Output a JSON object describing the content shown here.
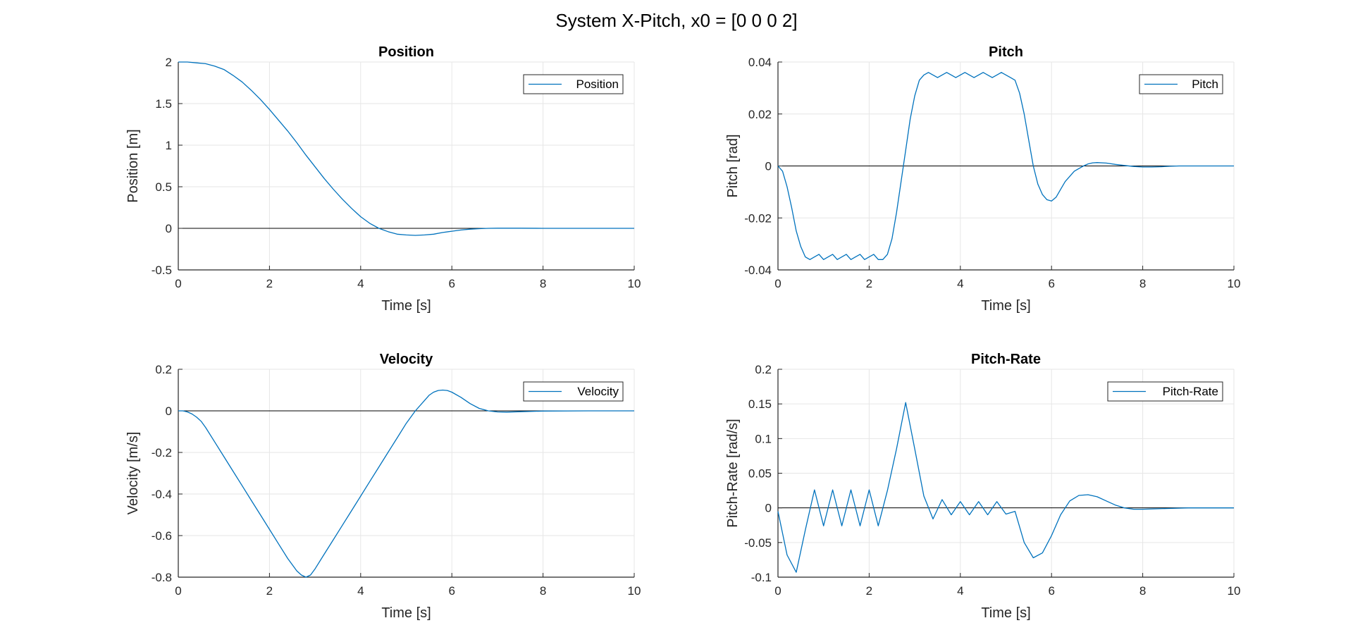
{
  "figure": {
    "suptitle": "System X-Pitch, x0 = [0 0 0 2]"
  },
  "colors": {
    "series": "#0072BD",
    "zero_line": "#000000",
    "grid": "#e6e6e6",
    "axis": "#262626"
  },
  "chart_data": [
    {
      "type": "line",
      "title": "Position",
      "xlabel": "Time [s]",
      "ylabel": "Position [m]",
      "xlim": [
        0,
        10
      ],
      "ylim": [
        -0.5,
        2
      ],
      "xticks": [
        0,
        2,
        4,
        6,
        8,
        10
      ],
      "yticks": [
        -0.5,
        0,
        0.5,
        1,
        1.5,
        2
      ],
      "ytick_labels": [
        "-0.5",
        "0",
        "0.5",
        "1",
        "1.5",
        "2"
      ],
      "grid": true,
      "legend": "top-right",
      "zero_line": true,
      "series": [
        {
          "name": "Position",
          "x": [
            0,
            0.2,
            0.4,
            0.6,
            0.8,
            1.0,
            1.2,
            1.4,
            1.6,
            1.8,
            2.0,
            2.2,
            2.4,
            2.6,
            2.8,
            3.0,
            3.2,
            3.4,
            3.6,
            3.8,
            4.0,
            4.2,
            4.4,
            4.6,
            4.8,
            5.0,
            5.2,
            5.4,
            5.6,
            5.8,
            6.0,
            6.2,
            6.4,
            6.6,
            6.8,
            7.0,
            7.5,
            8.0,
            9.0,
            10.0
          ],
          "y": [
            2.0,
            2.0,
            1.99,
            1.98,
            1.95,
            1.91,
            1.84,
            1.76,
            1.66,
            1.55,
            1.43,
            1.3,
            1.17,
            1.03,
            0.88,
            0.74,
            0.6,
            0.47,
            0.35,
            0.24,
            0.14,
            0.06,
            0.0,
            -0.04,
            -0.07,
            -0.08,
            -0.085,
            -0.08,
            -0.07,
            -0.05,
            -0.035,
            -0.02,
            -0.01,
            -0.004,
            0.0,
            0.002,
            0.002,
            0.0,
            0.0,
            0.0
          ]
        }
      ]
    },
    {
      "type": "line",
      "title": "Pitch",
      "xlabel": "Time [s]",
      "ylabel": "Pitch [rad]",
      "xlim": [
        0,
        10
      ],
      "ylim": [
        -0.04,
        0.04
      ],
      "xticks": [
        0,
        2,
        4,
        6,
        8,
        10
      ],
      "yticks": [
        -0.04,
        -0.02,
        0,
        0.02,
        0.04
      ],
      "ytick_labels": [
        "-0.04",
        "-0.02",
        "0",
        "0.02",
        "0.04"
      ],
      "grid": true,
      "legend": "top-right",
      "zero_line": true,
      "series": [
        {
          "name": "Pitch",
          "x": [
            0,
            0.1,
            0.2,
            0.3,
            0.4,
            0.5,
            0.6,
            0.7,
            0.8,
            0.9,
            1.0,
            1.1,
            1.2,
            1.3,
            1.4,
            1.5,
            1.6,
            1.7,
            1.8,
            1.9,
            2.0,
            2.1,
            2.2,
            2.3,
            2.4,
            2.5,
            2.6,
            2.7,
            2.8,
            2.9,
            3.0,
            3.1,
            3.2,
            3.3,
            3.4,
            3.5,
            3.6,
            3.7,
            3.8,
            3.9,
            4.0,
            4.1,
            4.2,
            4.3,
            4.4,
            4.5,
            4.6,
            4.7,
            4.8,
            4.9,
            5.0,
            5.1,
            5.2,
            5.3,
            5.4,
            5.5,
            5.6,
            5.7,
            5.8,
            5.9,
            6.0,
            6.1,
            6.2,
            6.3,
            6.4,
            6.5,
            6.6,
            6.7,
            6.8,
            6.9,
            7.0,
            7.2,
            7.4,
            7.6,
            7.8,
            8.0,
            8.2,
            8.4,
            8.6,
            8.8,
            9.0,
            9.5,
            10.0
          ],
          "y": [
            0,
            -0.002,
            -0.008,
            -0.016,
            -0.025,
            -0.031,
            -0.035,
            -0.036,
            -0.035,
            -0.034,
            -0.036,
            -0.035,
            -0.034,
            -0.036,
            -0.035,
            -0.034,
            -0.036,
            -0.035,
            -0.034,
            -0.036,
            -0.035,
            -0.034,
            -0.036,
            -0.036,
            -0.034,
            -0.028,
            -0.018,
            -0.006,
            0.006,
            0.018,
            0.027,
            0.033,
            0.035,
            0.036,
            0.035,
            0.034,
            0.035,
            0.036,
            0.035,
            0.034,
            0.035,
            0.036,
            0.035,
            0.034,
            0.035,
            0.036,
            0.035,
            0.034,
            0.035,
            0.036,
            0.035,
            0.034,
            0.033,
            0.028,
            0.02,
            0.01,
            0.0,
            -0.007,
            -0.011,
            -0.013,
            -0.0135,
            -0.012,
            -0.009,
            -0.006,
            -0.004,
            -0.002,
            -0.001,
            0.0,
            0.0008,
            0.0012,
            0.0013,
            0.0011,
            0.0006,
            0.0002,
            -0.0002,
            -0.0004,
            -0.0004,
            -0.0003,
            -0.0001,
            0.0,
            0.0,
            0.0,
            0.0
          ]
        }
      ]
    },
    {
      "type": "line",
      "title": "Velocity",
      "xlabel": "Time [s]",
      "ylabel": "Velocity [m/s]",
      "xlim": [
        0,
        10
      ],
      "ylim": [
        -0.8,
        0.2
      ],
      "xticks": [
        0,
        2,
        4,
        6,
        8,
        10
      ],
      "yticks": [
        -0.8,
        -0.6,
        -0.4,
        -0.2,
        0,
        0.2
      ],
      "ytick_labels": [
        "-0.8",
        "-0.6",
        "-0.4",
        "-0.2",
        "0",
        "0.2"
      ],
      "grid": true,
      "legend": "top-right",
      "zero_line": true,
      "series": [
        {
          "name": "Velocity",
          "x": [
            0,
            0.1,
            0.2,
            0.3,
            0.4,
            0.5,
            0.6,
            0.8,
            1.0,
            1.2,
            1.4,
            1.6,
            1.8,
            2.0,
            2.2,
            2.4,
            2.6,
            2.7,
            2.8,
            2.9,
            3.0,
            3.2,
            3.4,
            3.6,
            3.8,
            4.0,
            4.2,
            4.4,
            4.6,
            4.8,
            5.0,
            5.2,
            5.4,
            5.5,
            5.6,
            5.7,
            5.8,
            5.9,
            6.0,
            6.2,
            6.4,
            6.6,
            6.8,
            7.0,
            7.2,
            7.5,
            8.0,
            9.0,
            10.0
          ],
          "y": [
            0,
            0.0,
            -0.005,
            -0.015,
            -0.03,
            -0.05,
            -0.08,
            -0.15,
            -0.22,
            -0.29,
            -0.36,
            -0.43,
            -0.5,
            -0.57,
            -0.64,
            -0.71,
            -0.77,
            -0.79,
            -0.8,
            -0.79,
            -0.76,
            -0.69,
            -0.62,
            -0.55,
            -0.48,
            -0.41,
            -0.34,
            -0.27,
            -0.2,
            -0.13,
            -0.06,
            0.0,
            0.05,
            0.075,
            0.09,
            0.098,
            0.1,
            0.098,
            0.09,
            0.065,
            0.035,
            0.012,
            0.0,
            -0.005,
            -0.006,
            -0.004,
            -0.001,
            0.0,
            0.0
          ]
        }
      ]
    },
    {
      "type": "line",
      "title": "Pitch-Rate",
      "xlabel": "Time [s]",
      "ylabel": "Pitch-Rate [rad/s]",
      "xlim": [
        0,
        10
      ],
      "ylim": [
        -0.1,
        0.2
      ],
      "xticks": [
        0,
        2,
        4,
        6,
        8,
        10
      ],
      "yticks": [
        -0.1,
        -0.05,
        0,
        0.05,
        0.1,
        0.15,
        0.2
      ],
      "ytick_labels": [
        "-0.1",
        "-0.05",
        "0",
        "0.05",
        "0.1",
        "0.15",
        "0.2"
      ],
      "grid": true,
      "legend": "top-right",
      "zero_line": true,
      "series": [
        {
          "name": "Pitch-Rate",
          "x": [
            0,
            0.2,
            0.4,
            0.6,
            0.8,
            1.0,
            1.2,
            1.4,
            1.6,
            1.8,
            2.0,
            2.2,
            2.4,
            2.6,
            2.8,
            3.0,
            3.2,
            3.4,
            3.6,
            3.8,
            4.0,
            4.2,
            4.4,
            4.6,
            4.8,
            5.0,
            5.2,
            5.4,
            5.6,
            5.8,
            6.0,
            6.2,
            6.4,
            6.6,
            6.8,
            7.0,
            7.2,
            7.4,
            7.6,
            7.8,
            8.0,
            8.5,
            9.0,
            10.0
          ],
          "y": [
            -0.005,
            -0.068,
            -0.093,
            -0.032,
            0.026,
            -0.026,
            0.026,
            -0.026,
            0.026,
            -0.026,
            0.026,
            -0.026,
            0.025,
            0.085,
            0.152,
            0.085,
            0.017,
            -0.016,
            0.012,
            -0.01,
            0.009,
            -0.01,
            0.009,
            -0.01,
            0.009,
            -0.009,
            -0.005,
            -0.05,
            -0.072,
            -0.065,
            -0.04,
            -0.01,
            0.01,
            0.018,
            0.019,
            0.016,
            0.01,
            0.004,
            0.0,
            -0.002,
            -0.002,
            -0.001,
            0.0,
            0.0
          ]
        }
      ]
    }
  ]
}
